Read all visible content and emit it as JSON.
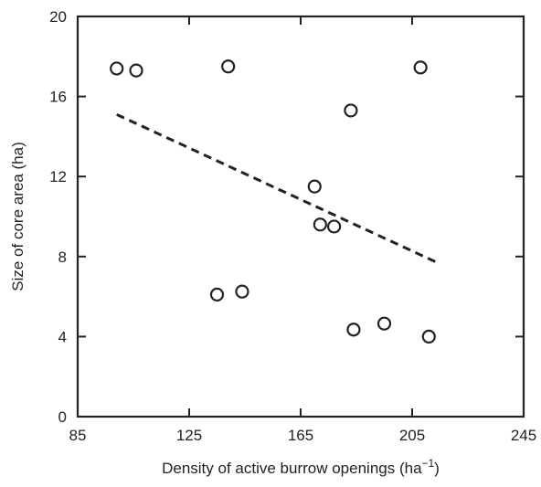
{
  "chart_data": {
    "type": "scatter",
    "xlabel_main": "Density of active burrow openings (ha",
    "xlabel_sup": "−1",
    "xlabel_end": ")",
    "ylabel": "Size of core area (ha)",
    "xlim": [
      85,
      245
    ],
    "ylim": [
      0,
      20
    ],
    "x_ticks": [
      85,
      125,
      165,
      205,
      245
    ],
    "y_ticks": [
      0,
      4,
      8,
      12,
      16,
      20
    ],
    "grid": false,
    "points": [
      {
        "x": 99,
        "y": 17.4
      },
      {
        "x": 106,
        "y": 17.3
      },
      {
        "x": 139,
        "y": 17.5
      },
      {
        "x": 208,
        "y": 17.45
      },
      {
        "x": 183,
        "y": 15.3
      },
      {
        "x": 170,
        "y": 11.5
      },
      {
        "x": 172,
        "y": 9.6
      },
      {
        "x": 177,
        "y": 9.5
      },
      {
        "x": 135,
        "y": 6.1
      },
      {
        "x": 144,
        "y": 6.25
      },
      {
        "x": 184,
        "y": 4.35
      },
      {
        "x": 195,
        "y": 4.65
      },
      {
        "x": 211,
        "y": 4.0
      }
    ],
    "trendline": {
      "style": "dashed",
      "x": [
        99,
        214
      ],
      "y": [
        15.1,
        7.7
      ]
    }
  }
}
